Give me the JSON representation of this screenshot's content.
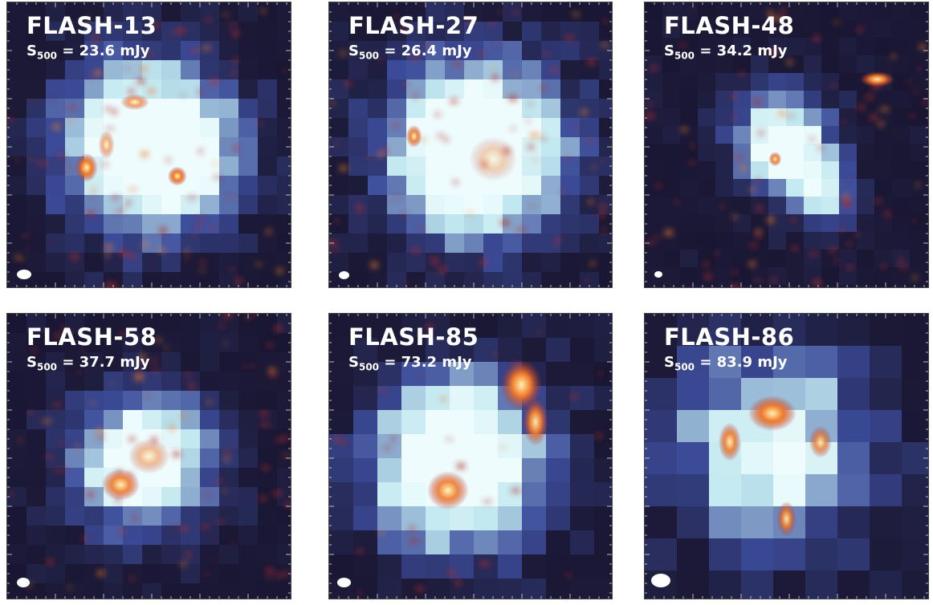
{
  "panels": [
    {
      "name": "FLASH-13",
      "flux_symbol": "S",
      "flux_sub": "500",
      "flux_value": "= 23.6 mJy"
    },
    {
      "name": "FLASH-27",
      "flux_symbol": "S",
      "flux_sub": "500",
      "flux_value": "= 26.4 mJy"
    },
    {
      "name": "FLASH-48",
      "flux_symbol": "S",
      "flux_sub": "500",
      "flux_value": "= 34.2 mJy"
    },
    {
      "name": "FLASH-58",
      "flux_symbol": "S",
      "flux_sub": "500",
      "flux_value": "= 37.7 mJy"
    },
    {
      "name": "FLASH-85",
      "flux_symbol": "S",
      "flux_sub": "500",
      "flux_value": "= 73.2 mJy"
    },
    {
      "name": "FLASH-86",
      "flux_symbol": "S",
      "flux_sub": "500",
      "flux_value": "= 83.9 mJy"
    }
  ],
  "colors": {
    "background_pixel": "#1c1a38",
    "mid_pixel": "#3c4c9a",
    "bright_pixel": "#bfe7ef",
    "core_pixel": "#eefcfd",
    "emission_hot": "#fff3b0",
    "emission_mid": "#f07a2a",
    "emission_faint": "#b12a2a"
  }
}
